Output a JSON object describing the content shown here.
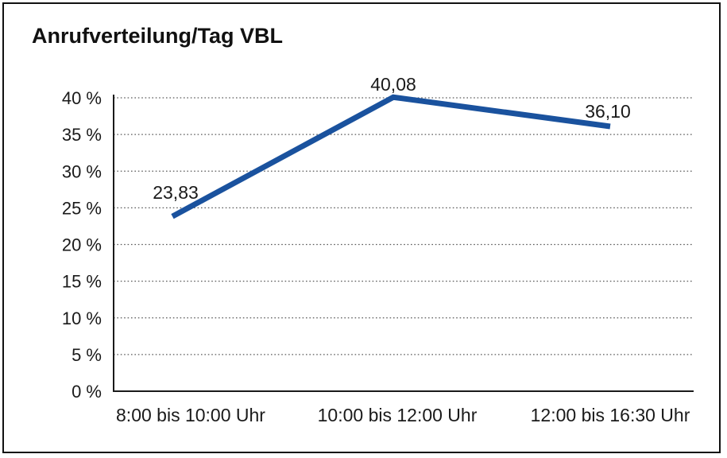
{
  "chart_data": {
    "type": "line",
    "title": "Anrufverteilung/Tag VBL",
    "categories": [
      "8:00 bis 10:00 Uhr",
      "10:00 bis 12:00 Uhr",
      "12:00 bis 16:30 Uhr"
    ],
    "values": [
      23.83,
      40.08,
      36.1
    ],
    "point_labels": [
      "23,83",
      "40,08",
      "36,10"
    ],
    "series_name": "Anrufverteilung/Tag VBL",
    "y_ticks": [
      0,
      5,
      10,
      15,
      20,
      25,
      30,
      35,
      40
    ],
    "y_tick_labels": [
      "0 %",
      "5 %",
      "10 %",
      "15 %",
      "20 %",
      "25 %",
      "30 %",
      "35 %",
      "40 %"
    ],
    "ylim": [
      0,
      40
    ],
    "xlabel": "",
    "ylabel": "",
    "grid": "horizontal-dotted",
    "legend": "none",
    "colors": {
      "line": "#1a529e",
      "text": "#1a1a1a",
      "grid": "#5a5a5a",
      "axis": "#1a1a1a",
      "border": "#111111",
      "background": "#ffffff"
    }
  }
}
